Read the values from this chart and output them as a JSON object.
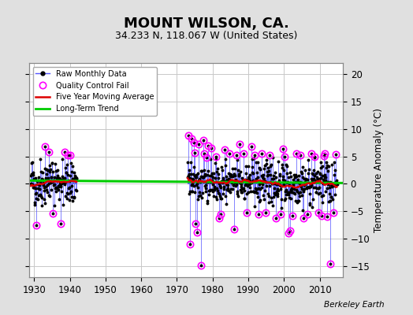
{
  "title": "MOUNT WILSON, CA.",
  "subtitle": "34.233 N, 118.067 W (United States)",
  "ylabel": "Temperature Anomaly (°C)",
  "watermark": "Berkeley Earth",
  "ylim": [
    -17,
    22
  ],
  "xlim": [
    1928.5,
    2016.5
  ],
  "yticks_right": [
    -15,
    -10,
    -5,
    0,
    5,
    10,
    15,
    20
  ],
  "xticks": [
    1930,
    1940,
    1950,
    1960,
    1970,
    1980,
    1990,
    2000,
    2010
  ],
  "bg_color": "#e0e0e0",
  "plot_bg_color": "#ffffff",
  "grid_color": "#c8c8c8",
  "line_color": "#5555ff",
  "ma_color": "#dd0000",
  "trend_color": "#00cc00",
  "qc_color": "#ff00ff",
  "dot_color": "#000000",
  "title_fontsize": 13,
  "subtitle_fontsize": 9,
  "seed": 42,
  "early_start": 1929,
  "early_end": 1942,
  "late_start": 1973,
  "late_end": 2015,
  "early_std": 2.2,
  "late_std": 2.0,
  "qc_threshold": 4.8
}
